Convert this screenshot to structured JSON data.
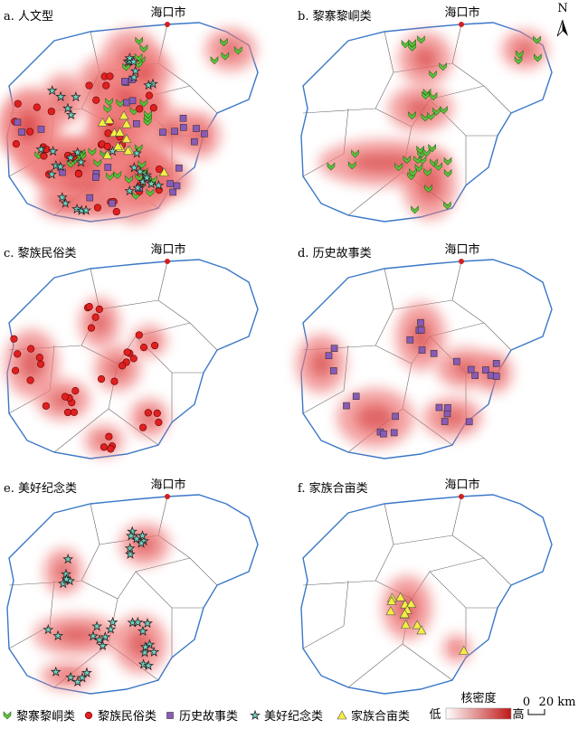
{
  "panels": [
    {
      "title": "a. 人文型",
      "city": "海口市"
    },
    {
      "title": "b. 黎寨黎峒类",
      "city": "海口市"
    },
    {
      "title": "c. 黎族民俗类",
      "city": "海口市"
    },
    {
      "title": "d. 历史故事类",
      "city": "海口市"
    },
    {
      "title": "e. 美好纪念类",
      "city": "海口市"
    },
    {
      "title": "f. 家族合亩类",
      "city": "海口市"
    }
  ],
  "north": "N",
  "legend": {
    "items": [
      "黎寨黎峒类",
      "黎族民俗类",
      "历史故事类",
      "美好纪念类",
      "家族合亩类"
    ],
    "density_title": "核密度",
    "low": "低",
    "high": "高"
  },
  "scale": {
    "zero": "0",
    "length": "20 km"
  }
}
